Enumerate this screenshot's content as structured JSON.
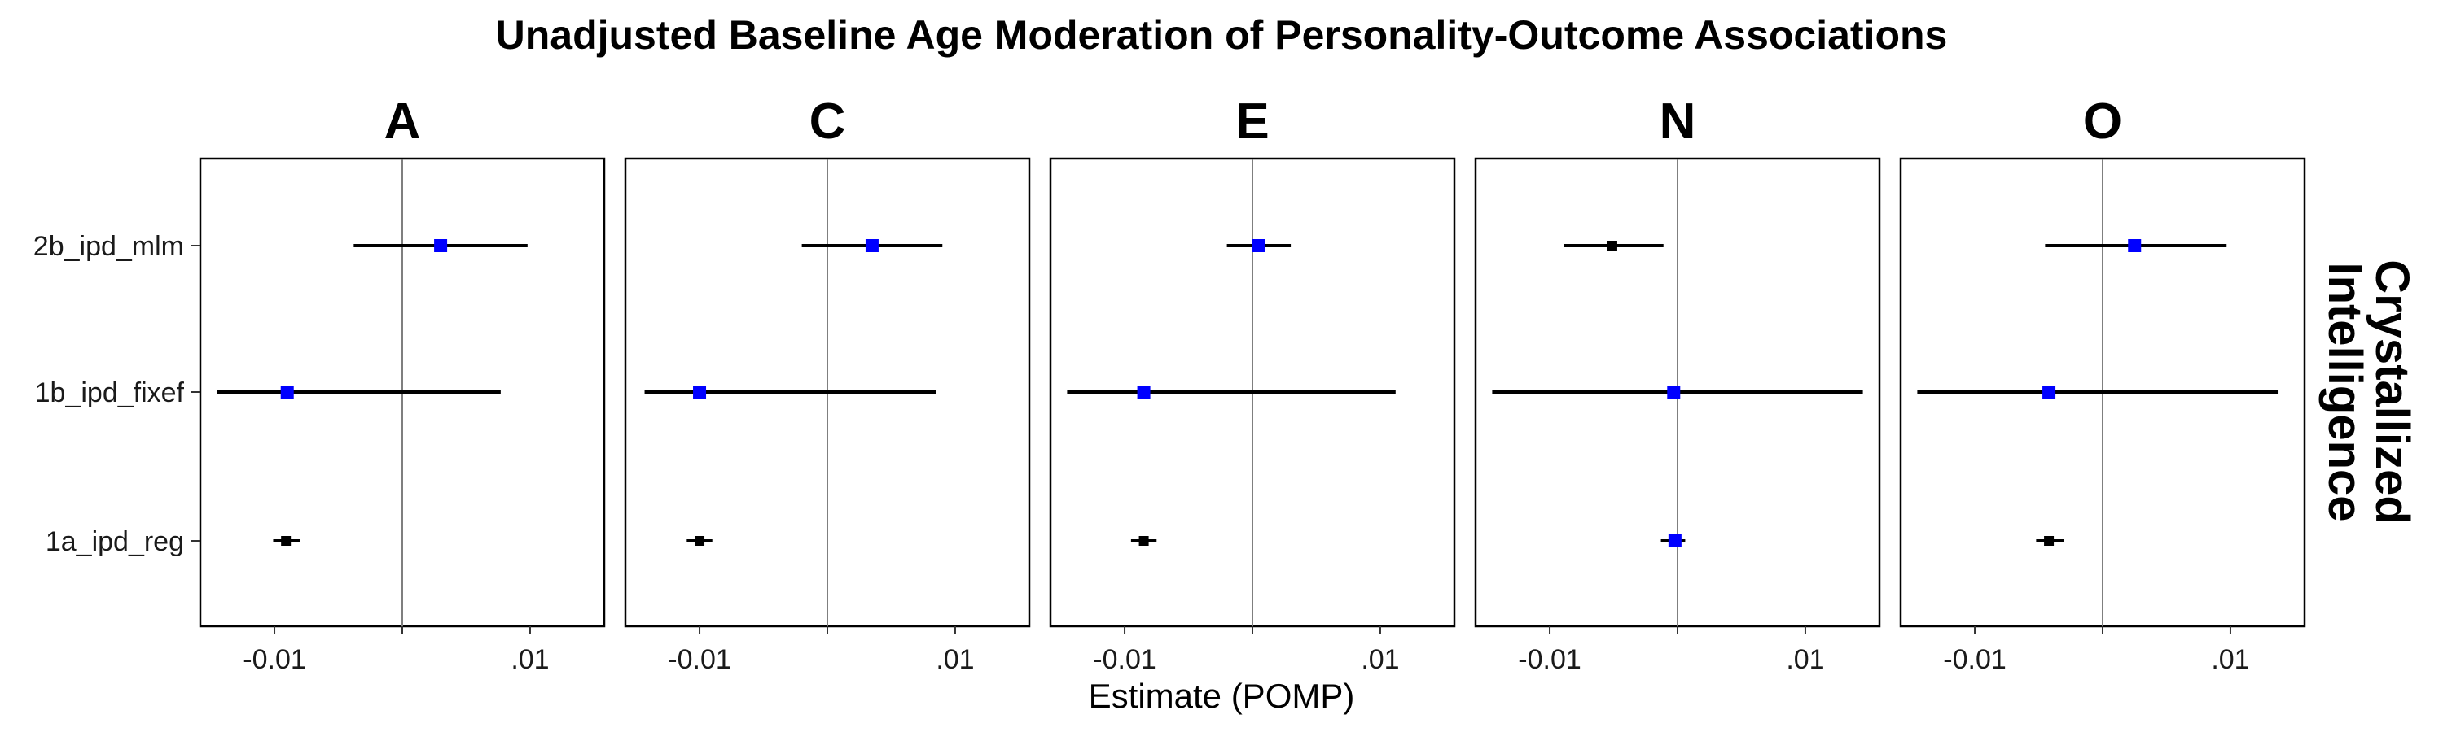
{
  "chart_data": {
    "type": "forest",
    "title": "Unadjusted Baseline Age Moderation of Personality-Outcome Associations",
    "xlabel": "Estimate (POMP)",
    "ylabel": "",
    "row_strip_label": [
      "Crystallized",
      "Intelligence"
    ],
    "x_tick_values": [
      -0.01,
      0,
      0.01
    ],
    "x_tick_labels": [
      "-0.01",
      "",
      ".01"
    ],
    "xlim": [
      -0.0158,
      0.0158
    ],
    "categories": [
      "2b_ipd_mlm",
      "1b_ipd_fixef",
      "1a_ipd_reg"
    ],
    "colors": {
      "significant": "#0000ff",
      "nonsignificant": "#000000",
      "reference_line": "#7f7f7f",
      "interval": "#000000"
    },
    "panels": [
      {
        "name": "A",
        "points": [
          {
            "category": "2b_ipd_mlm",
            "estimate": 0.003,
            "lower": -0.0038,
            "upper": 0.0098,
            "significant": true
          },
          {
            "category": "1b_ipd_fixef",
            "estimate": -0.009,
            "lower": -0.0145,
            "upper": 0.0077,
            "significant": true
          },
          {
            "category": "1a_ipd_reg",
            "estimate": -0.0091,
            "lower": -0.0101,
            "upper": -0.008,
            "significant": false
          }
        ]
      },
      {
        "name": "C",
        "points": [
          {
            "category": "2b_ipd_mlm",
            "estimate": 0.0035,
            "lower": -0.002,
            "upper": 0.009,
            "significant": true
          },
          {
            "category": "1b_ipd_fixef",
            "estimate": -0.01,
            "lower": -0.0143,
            "upper": 0.0085,
            "significant": true
          },
          {
            "category": "1a_ipd_reg",
            "estimate": -0.01,
            "lower": -0.011,
            "upper": -0.009,
            "significant": false
          }
        ]
      },
      {
        "name": "E",
        "points": [
          {
            "category": "2b_ipd_mlm",
            "estimate": 0.0005,
            "lower": -0.002,
            "upper": 0.003,
            "significant": true
          },
          {
            "category": "1b_ipd_fixef",
            "estimate": -0.0085,
            "lower": -0.0145,
            "upper": 0.0112,
            "significant": true
          },
          {
            "category": "1a_ipd_reg",
            "estimate": -0.0085,
            "lower": -0.0095,
            "upper": -0.0075,
            "significant": false
          }
        ]
      },
      {
        "name": "N",
        "points": [
          {
            "category": "2b_ipd_mlm",
            "estimate": -0.0051,
            "lower": -0.0089,
            "upper": -0.0011,
            "significant": false
          },
          {
            "category": "1b_ipd_fixef",
            "estimate": -0.0003,
            "lower": -0.0145,
            "upper": 0.0145,
            "significant": true
          },
          {
            "category": "1a_ipd_reg",
            "estimate": -0.0002,
            "lower": -0.0013,
            "upper": 0.0006,
            "significant": true
          }
        ]
      },
      {
        "name": "O",
        "points": [
          {
            "category": "2b_ipd_mlm",
            "estimate": 0.0025,
            "lower": -0.0045,
            "upper": 0.0097,
            "significant": true
          },
          {
            "category": "1b_ipd_fixef",
            "estimate": -0.0042,
            "lower": -0.0145,
            "upper": 0.0137,
            "significant": true
          },
          {
            "category": "1a_ipd_reg",
            "estimate": -0.0042,
            "lower": -0.0052,
            "upper": -0.003,
            "significant": false
          }
        ]
      }
    ]
  }
}
